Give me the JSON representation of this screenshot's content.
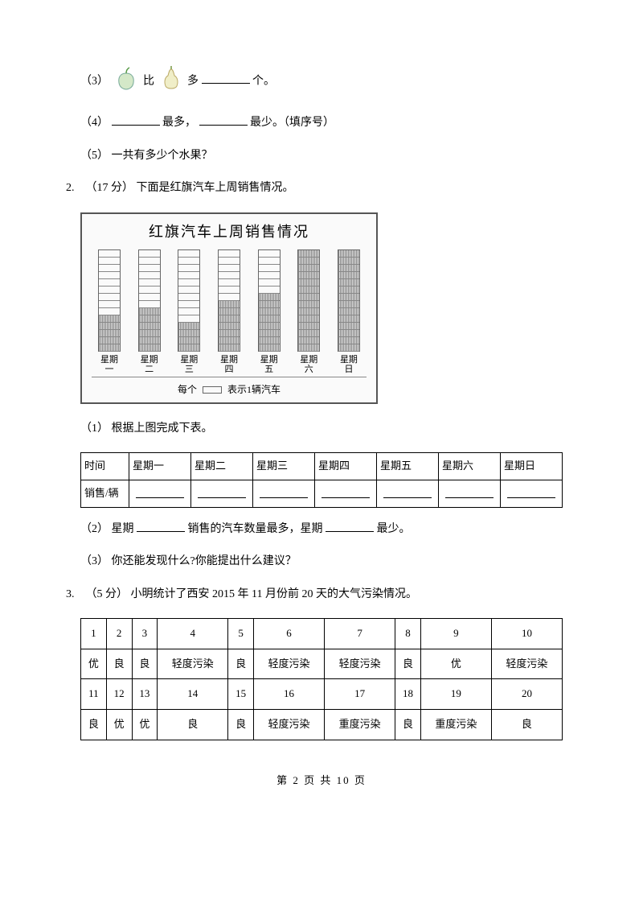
{
  "q3": {
    "prefix": "（3）",
    "mid": "比",
    "mid2": "多",
    "suffix": "个。"
  },
  "q4": {
    "prefix": "（4）",
    "a": "最多，",
    "b": "最少。（填序号）"
  },
  "q5": {
    "prefix": "（5）",
    "text": "一共有多少个水果？"
  },
  "q2": {
    "num": "2.",
    "pts": "（17 分）",
    "text": "下面是红旗汽车上周销售情况。"
  },
  "chart": {
    "title": "红旗汽车上周销售情况",
    "max": 14,
    "days": [
      "星期一",
      "星期二",
      "星期三",
      "星期四",
      "星期五",
      "星期六",
      "星期日"
    ],
    "dayshort": [
      "星期\n一",
      "星期\n二",
      "星期\n三",
      "星期\n四",
      "星期\n五",
      "星期\n六",
      "星期\n日"
    ],
    "values": [
      5,
      6,
      4,
      7,
      8,
      14,
      14
    ],
    "legend_pre": "每个",
    "legend_post": "表示1辆汽车"
  },
  "q2_1": {
    "prefix": "（1）",
    "text": "根据上图完成下表。"
  },
  "t1": {
    "h": [
      "时间",
      "星期一",
      "星期二",
      "星期三",
      "星期四",
      "星期五",
      "星期六",
      "星期日"
    ],
    "r": "销售/辆"
  },
  "q2_2": {
    "prefix": "（2）",
    "a": "星期",
    "b": "销售的汽车数量最多，星期",
    "c": "最少。"
  },
  "q2_3": {
    "prefix": "（3）",
    "text": "你还能发现什么?你能提出什么建议？"
  },
  "q3main": {
    "num": "3.",
    "pts": "（5 分）",
    "text": "小明统计了西安 2015 年 11 月份前 20 天的大气污染情况。"
  },
  "t2": {
    "r1": [
      "1",
      "2",
      "3",
      "4",
      "5",
      "6",
      "7",
      "8",
      "9",
      "10"
    ],
    "r2": [
      "优",
      "良",
      "良",
      "轻度污染",
      "良",
      "轻度污染",
      "轻度污染",
      "良",
      "优",
      "轻度污染"
    ],
    "r3": [
      "11",
      "12",
      "13",
      "14",
      "15",
      "16",
      "17",
      "18",
      "19",
      "20"
    ],
    "r4": [
      "良",
      "优",
      "优",
      "良",
      "良",
      "轻度污染",
      "重度污染",
      "良",
      "重度污染",
      "良"
    ]
  },
  "footer": {
    "a": "第",
    "b": "2",
    "c": "页  共",
    "d": "10",
    "e": "页"
  }
}
